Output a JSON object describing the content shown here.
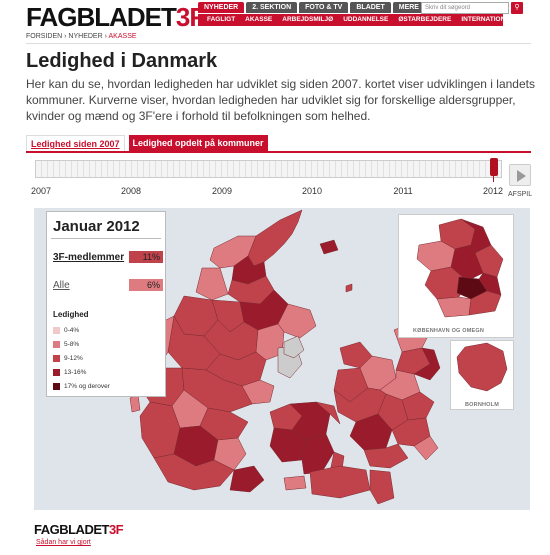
{
  "header": {
    "logo_main": "FAGBLADET",
    "logo_accent": "3F",
    "topnav": [
      {
        "label": "NYHEDER",
        "active": true
      },
      {
        "label": "2. SEKTION",
        "active": false
      },
      {
        "label": "FOTO & TV",
        "active": false
      },
      {
        "label": "BLADET",
        "active": false
      },
      {
        "label": "MERE",
        "active": false
      }
    ],
    "search_placeholder": "Skriv dit søgeord",
    "subnav": [
      "FAGLIGT",
      "AKASSE",
      "ARBEJDSMILJØ",
      "UDDANNELSE",
      "ØSTARBEJDERE",
      "INTERNATIONALT"
    ]
  },
  "breadcrumb": {
    "items": [
      "FORSIDEN",
      "NYHEDER"
    ],
    "current": "AKASSE",
    "sep": "›"
  },
  "page": {
    "title": "Ledighed i Danmark",
    "lead": "Her kan du se, hvordan ledigheden har udviklet sig siden 2007. kortet viser udviklingen i landets kommuner. Kurverne viser, hvordan ledigheden har udviklet sig for forskellige aldersgrupper, kvinder og mænd og 3F'ere i forhold til befolkningen som helhed."
  },
  "tabs": [
    {
      "label": "Ledighed siden 2007",
      "active": false
    },
    {
      "label": "Ledighed opdelt på kommuner",
      "active": true
    }
  ],
  "timeline": {
    "years": [
      "2007",
      "2008",
      "2009",
      "2010",
      "2011",
      "2012"
    ],
    "selected_fraction": 1.0,
    "play_label": "AFSPIL"
  },
  "panel": {
    "title": "Januar 2012",
    "rows": [
      {
        "label": "3F-medlemmer",
        "value": "11%"
      },
      {
        "label": "Alle",
        "value": "6%"
      }
    ],
    "legend_title": "Ledighed",
    "legend": [
      {
        "label": "0-4%",
        "color": "#f2c9cb"
      },
      {
        "label": "5-8%",
        "color": "#de7b80"
      },
      {
        "label": "9-12%",
        "color": "#c0434c"
      },
      {
        "label": "13-16%",
        "color": "#9a1c2c"
      },
      {
        "label": "17% og derover",
        "color": "#5e0a14"
      }
    ]
  },
  "insets": {
    "copenhagen_label": "KØBENHAVN OG OMEGN",
    "bornholm_label": "BORNHOLM"
  },
  "colors": {
    "brand": "#c8102e",
    "map_bg": "#dfe4ea",
    "border": "#7a2a30"
  },
  "footer": {
    "logo_main": "FAGBLADET",
    "logo_accent": "3F",
    "link": "Sådan har vi gjort"
  }
}
